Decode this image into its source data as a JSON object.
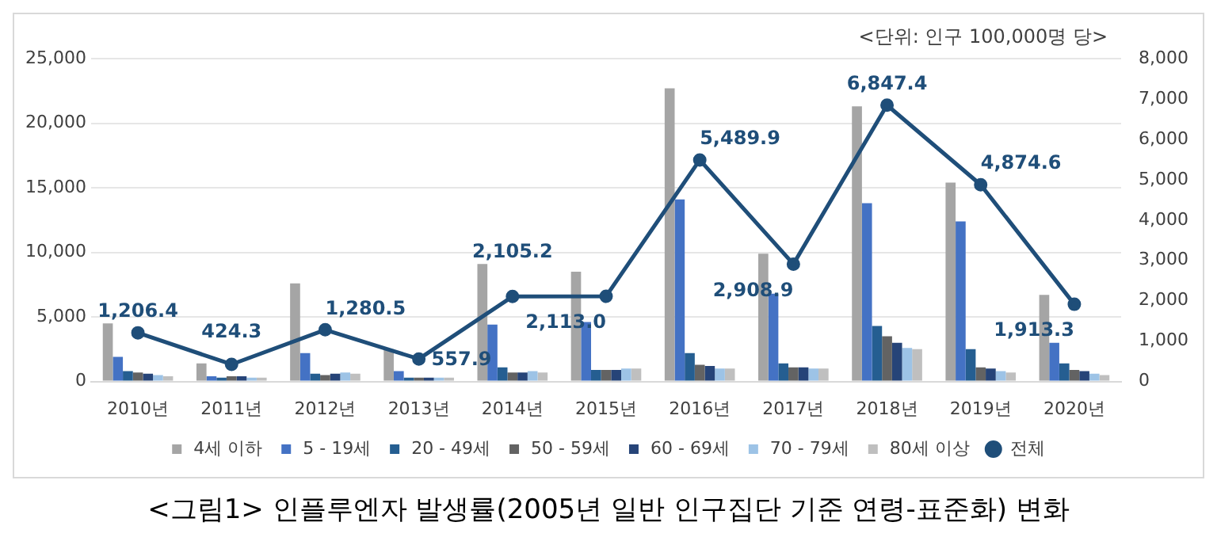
{
  "chart_data": {
    "type": "bar",
    "categories": [
      "2010년",
      "2011년",
      "2012년",
      "2013년",
      "2014년",
      "2015년",
      "2016년",
      "2017년",
      "2018년",
      "2019년",
      "2020년"
    ],
    "series": [
      {
        "name": "4세 이하",
        "color": "#a5a5a5",
        "values": [
          4500,
          1400,
          7600,
          2500,
          9100,
          8500,
          22700,
          9900,
          21300,
          15400,
          6700
        ]
      },
      {
        "name": "5 - 19세",
        "color": "#4472c4",
        "values": [
          1900,
          400,
          2200,
          800,
          4400,
          4600,
          14100,
          6800,
          13800,
          12400,
          3000
        ]
      },
      {
        "name": "20 - 49세",
        "color": "#255e91",
        "values": [
          800,
          300,
          600,
          300,
          1100,
          900,
          2200,
          1400,
          4300,
          2500,
          1400
        ]
      },
      {
        "name": "50 - 59세",
        "color": "#636363",
        "values": [
          700,
          400,
          500,
          300,
          700,
          900,
          1300,
          1100,
          3500,
          1100,
          900
        ]
      },
      {
        "name": "60 - 69세",
        "color": "#264478",
        "values": [
          600,
          400,
          600,
          300,
          700,
          900,
          1200,
          1100,
          3000,
          1000,
          800
        ]
      },
      {
        "name": "70 - 79세",
        "color": "#9dc3e6",
        "values": [
          500,
          300,
          700,
          300,
          800,
          1000,
          1000,
          1000,
          2600,
          800,
          600
        ]
      },
      {
        "name": "80세 이상",
        "color": "#bfbfbf",
        "values": [
          400,
          300,
          600,
          300,
          700,
          1000,
          1000,
          1000,
          2500,
          700,
          500
        ]
      },
      {
        "name": "전체",
        "type": "line",
        "axis": "y2",
        "color": "#1f4e79",
        "values": [
          1206.4,
          424.3,
          1280.5,
          557.9,
          2105.2,
          2113.0,
          5489.9,
          2908.9,
          6847.4,
          4874.6,
          1913.3
        ],
        "value_labels": [
          "1,206.4",
          "424.3",
          "1,280.5",
          "557.9",
          "2,105.2",
          "2,113.0",
          "5,489.9",
          "2,908.9",
          "6,847.4",
          "4,874.6",
          "1,913.3"
        ]
      }
    ],
    "ylim": [
      0,
      25000
    ],
    "yticks": [
      {
        "value": 0,
        "label": "0"
      },
      {
        "value": 5000,
        "label": "5,000"
      },
      {
        "value": 10000,
        "label": "10,000"
      },
      {
        "value": 15000,
        "label": "15,000"
      },
      {
        "value": 20000,
        "label": "20,000"
      },
      {
        "value": 25000,
        "label": "25,000"
      }
    ],
    "y2lim": [
      0,
      8000
    ],
    "y2ticks": [
      {
        "value": 0,
        "label": "0"
      },
      {
        "value": 1000,
        "label": "1,000"
      },
      {
        "value": 2000,
        "label": "2,000"
      },
      {
        "value": 3000,
        "label": "3,000"
      },
      {
        "value": 4000,
        "label": "4,000"
      },
      {
        "value": 5000,
        "label": "5,000"
      },
      {
        "value": 6000,
        "label": "6,000"
      },
      {
        "value": 7000,
        "label": "7,000"
      },
      {
        "value": 8000,
        "label": "8,000"
      }
    ],
    "grid": "y",
    "legend": "bottom",
    "marker": "circle",
    "annotations": [
      "<단위: 인구 100,000명 당>",
      "<그림1> 인플루엔자 발생률(2005년 일반 인구집단 기준 연령-표준화) 변화"
    ]
  }
}
